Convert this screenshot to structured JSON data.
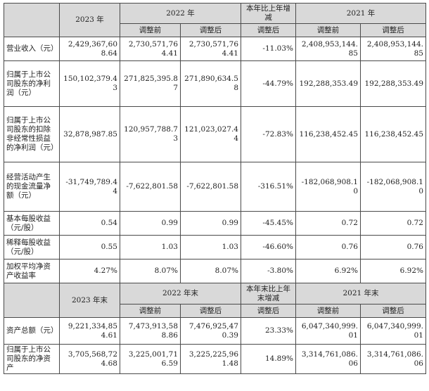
{
  "header1": {
    "year_a": "2023 年",
    "year_b": "2022 年",
    "change": "本年比上年增减",
    "year_c": "2021 年",
    "sub": [
      "调整前",
      "调整后",
      "调整后",
      "调整前",
      "调整后"
    ]
  },
  "rows1": [
    {
      "label": "营业收入（元）",
      "v": [
        "2,429,367,608.64",
        "2,730,571,764.41",
        "2,730,571,764.41",
        "-11.03%",
        "2,408,953,144.85",
        "2,408,953,144.85"
      ]
    },
    {
      "label": "归属于上市公司股东的净利润（元）",
      "v": [
        "150,102,379.43",
        "271,825,395.87",
        "271,890,634.58",
        "-44.79%",
        "192,288,353.49",
        "192,288,353.49"
      ]
    },
    {
      "label": "归属于上市公司股东的扣除非经常性损益的净利润（元）",
      "v": [
        "32,878,987.85",
        "120,957,788.73",
        "121,023,027.44",
        "-72.83%",
        "116,238,452.45",
        "116,238,452.45"
      ]
    },
    {
      "label": "经营活动产生的现金流量净额（元）",
      "v": [
        "-31,749,789.44",
        "-7,622,801.58",
        "-7,622,801.58",
        "-316.51%",
        "-182,068,908.10",
        "-182,068,908.10"
      ]
    },
    {
      "label": "基本每股收益（元/股）",
      "v": [
        "0.54",
        "0.99",
        "0.99",
        "-45.45%",
        "0.72",
        "0.72"
      ]
    },
    {
      "label": "稀释每股收益（元/股）",
      "v": [
        "0.55",
        "1.03",
        "1.03",
        "-46.60%",
        "0.76",
        "0.76"
      ]
    },
    {
      "label": "加权平均净资产收益率",
      "v": [
        "4.27%",
        "8.07%",
        "8.07%",
        "-3.80%",
        "6.92%",
        "6.92%"
      ]
    }
  ],
  "header2": {
    "year_a": "2023 年末",
    "year_b": "2022 年末",
    "change": "本年末比上年末增减",
    "year_c": "2021 年末",
    "sub": [
      "调整前",
      "调整后",
      "调整后",
      "调整前",
      "调整后"
    ]
  },
  "rows2": [
    {
      "label": "资产总额（元）",
      "v": [
        "9,221,334,854.61",
        "7,473,913,588.86",
        "7,476,925,470.39",
        "23.33%",
        "6,047,340,999.01",
        "6,047,340,999.01"
      ]
    },
    {
      "label": "归属于上市公司股东的净资产",
      "v": [
        "3,705,568,724.68",
        "3,225,001,716.59",
        "3,225,225,961.48",
        "14.89%",
        "3,314,761,086.06",
        "3,314,761,086.06"
      ]
    }
  ]
}
